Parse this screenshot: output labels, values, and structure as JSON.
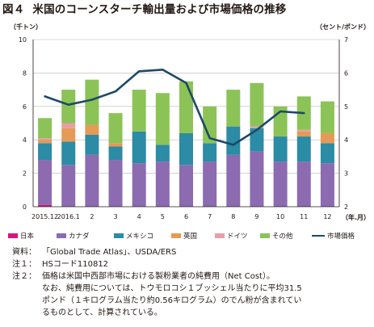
{
  "title": {
    "number": "図４",
    "text": "米国のコーンスターチ輸出量および市場価格の推移"
  },
  "chart_data": {
    "type": "bar",
    "stacked": true,
    "left_axis_unit": "（千トン）",
    "right_axis_unit": "（セント/ポンド）",
    "x_unit": "（年.月）",
    "categories": [
      "2015.12",
      "2016.1",
      "2",
      "3",
      "4",
      "5",
      "6",
      "7",
      "8",
      "9",
      "10",
      "11",
      "12"
    ],
    "yticks_left": [
      "0",
      "2",
      "4",
      "6",
      "8",
      "10"
    ],
    "yticks_right": [
      "2",
      "3",
      "4",
      "5",
      "6",
      "7"
    ],
    "ylim_left": [
      0,
      10
    ],
    "ylim_right": [
      2,
      7
    ],
    "grid": true,
    "legend_position": "bottom",
    "series": [
      {
        "name": "日本",
        "color": "#d2177f",
        "values": [
          0.1,
          0.0,
          0.0,
          0.0,
          0.0,
          0.0,
          0.0,
          0.0,
          0.0,
          0.0,
          0.0,
          0.0,
          0.0
        ]
      },
      {
        "name": "カナダ",
        "color": "#8c6bb1",
        "values": [
          2.7,
          2.5,
          3.1,
          2.8,
          2.6,
          2.7,
          2.5,
          2.7,
          3.1,
          3.3,
          2.7,
          2.7,
          2.6
        ]
      },
      {
        "name": "メキシコ",
        "color": "#2c8ba5",
        "values": [
          1.0,
          1.4,
          1.2,
          0.8,
          1.9,
          1.0,
          1.9,
          1.1,
          1.7,
          1.4,
          1.5,
          1.5,
          1.2
        ]
      },
      {
        "name": "英国",
        "color": "#e59a55",
        "values": [
          0.2,
          0.8,
          0.6,
          0.2,
          0.0,
          0.0,
          0.0,
          0.0,
          0.0,
          0.0,
          0.0,
          0.3,
          0.6
        ]
      },
      {
        "name": "ドイツ",
        "color": "#e79ea6",
        "values": [
          0.1,
          0.3,
          0.0,
          0.0,
          0.0,
          0.0,
          0.0,
          0.0,
          0.0,
          0.1,
          0.0,
          0.1,
          0.0
        ]
      },
      {
        "name": "その他",
        "color": "#8cc356",
        "values": [
          1.2,
          2.0,
          2.7,
          1.8,
          2.5,
          3.1,
          3.1,
          2.2,
          2.2,
          2.6,
          1.8,
          2.0,
          1.9
        ]
      }
    ],
    "line_series": {
      "name": "市場価格",
      "color": "#1c4a67",
      "axis": "right",
      "values": [
        5.3,
        5.05,
        5.2,
        5.45,
        6.05,
        6.1,
        5.7,
        4.05,
        3.85,
        4.3,
        4.85,
        4.8,
        null
      ]
    }
  },
  "notes": [
    {
      "label": "資料：",
      "text": "「Global Trade Atlas」、USDA/ERS"
    },
    {
      "label": "注１：",
      "text": "HSコード110812"
    },
    {
      "label": "注２：",
      "text": "価格は米国中西部市場における製粉業者の純費用（Net Cost）。"
    }
  ],
  "note_continuation": [
    "なお、純費用については、トウモロコシ１ブッシェル当たりに平均31.5",
    "ポンド（１キログラム当たり約0.56キログラム）のでん粉が含まれてい",
    "るものとして、計算されている。"
  ]
}
